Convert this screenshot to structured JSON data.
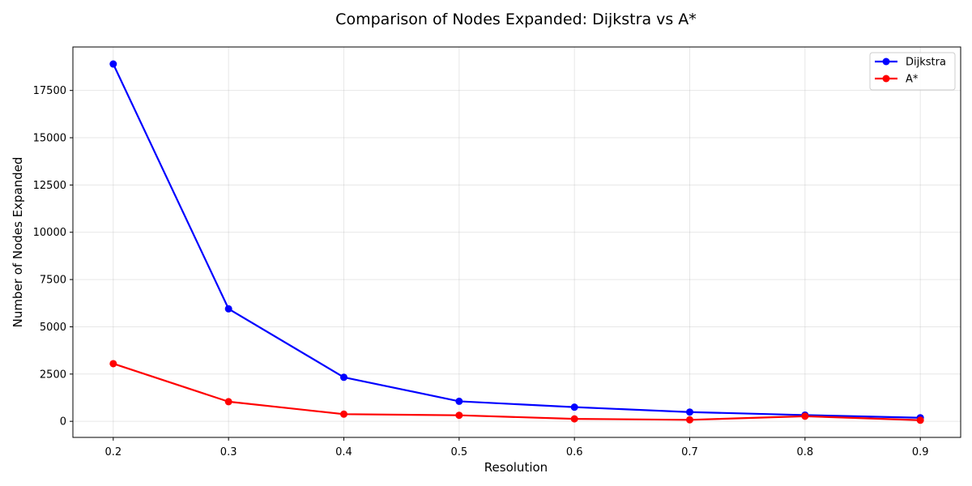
{
  "chart_data": {
    "type": "line",
    "title": "Comparison of Nodes Expanded: Dijkstra vs A*",
    "xlabel": "Resolution",
    "ylabel": "Number of Nodes Expanded",
    "x": [
      0.2,
      0.3,
      0.4,
      0.5,
      0.6,
      0.7,
      0.8,
      0.9
    ],
    "xlim": [
      0.165,
      0.935
    ],
    "ylim": [
      -850,
      19800
    ],
    "xticks": [
      "0.2",
      "0.3",
      "0.4",
      "0.5",
      "0.6",
      "0.7",
      "0.8",
      "0.9"
    ],
    "yticks": [
      "0",
      "2500",
      "5000",
      "7500",
      "10000",
      "12500",
      "15000",
      "17500"
    ],
    "grid": true,
    "legend_position": "top-right",
    "series": [
      {
        "name": "Dijkstra",
        "color": "#0000ff",
        "values": [
          18900,
          5950,
          2330,
          1060,
          750,
          490,
          330,
          190
        ]
      },
      {
        "name": "A*",
        "color": "#ff0000",
        "values": [
          3050,
          1040,
          380,
          320,
          130,
          80,
          270,
          60
        ]
      }
    ]
  }
}
